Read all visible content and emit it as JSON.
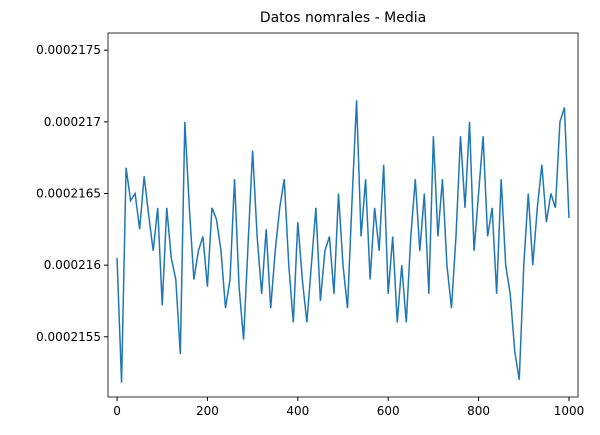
{
  "chart_data": {
    "type": "line",
    "title": "Datos nomrales - Media",
    "x": [
      0,
      10,
      20,
      30,
      40,
      50,
      60,
      70,
      80,
      90,
      100,
      110,
      120,
      130,
      140,
      150,
      160,
      170,
      180,
      190,
      200,
      210,
      220,
      230,
      240,
      250,
      260,
      270,
      280,
      290,
      300,
      310,
      320,
      330,
      340,
      350,
      360,
      370,
      380,
      390,
      400,
      410,
      420,
      430,
      440,
      450,
      460,
      470,
      480,
      490,
      500,
      510,
      520,
      530,
      540,
      550,
      560,
      570,
      580,
      590,
      600,
      610,
      620,
      630,
      640,
      650,
      660,
      670,
      680,
      690,
      700,
      710,
      720,
      730,
      740,
      750,
      760,
      770,
      780,
      790,
      800,
      810,
      820,
      830,
      840,
      850,
      860,
      870,
      880,
      890,
      900,
      910,
      920,
      930,
      940,
      950,
      960,
      970,
      980,
      990,
      1000
    ],
    "series": [
      {
        "color": "#1f77b4",
        "values": [
          0.00021605,
          0.00021518,
          0.00021668,
          0.00021645,
          0.0002165,
          0.00021625,
          0.00021662,
          0.00021635,
          0.0002161,
          0.0002164,
          0.00021572,
          0.0002164,
          0.00021605,
          0.0002159,
          0.00021538,
          0.000217,
          0.0002164,
          0.0002159,
          0.0002161,
          0.0002162,
          0.00021585,
          0.0002164,
          0.00021632,
          0.0002161,
          0.0002157,
          0.0002159,
          0.0002166,
          0.00021585,
          0.00021548,
          0.00021615,
          0.0002168,
          0.0002162,
          0.0002158,
          0.00021625,
          0.0002157,
          0.0002161,
          0.0002164,
          0.0002166,
          0.000216,
          0.0002156,
          0.0002163,
          0.0002159,
          0.0002156,
          0.000216,
          0.0002164,
          0.00021575,
          0.0002161,
          0.0002162,
          0.0002158,
          0.0002165,
          0.000216,
          0.0002157,
          0.00021645,
          0.00021715,
          0.0002162,
          0.0002166,
          0.0002159,
          0.0002164,
          0.0002161,
          0.0002167,
          0.0002158,
          0.0002162,
          0.0002156,
          0.000216,
          0.0002156,
          0.0002162,
          0.0002166,
          0.0002161,
          0.0002165,
          0.0002158,
          0.0002169,
          0.0002162,
          0.0002166,
          0.000216,
          0.0002157,
          0.0002162,
          0.0002169,
          0.0002164,
          0.000217,
          0.0002161,
          0.0002165,
          0.0002169,
          0.0002162,
          0.0002164,
          0.0002158,
          0.0002166,
          0.000216,
          0.0002158,
          0.0002154,
          0.0002152,
          0.000216,
          0.0002165,
          0.000216,
          0.0002164,
          0.0002167,
          0.0002163,
          0.0002165,
          0.0002164,
          0.000217,
          0.0002171,
          0.00021633
        ]
      }
    ],
    "xlim": [
      -20,
      1020
    ],
    "xticks": [
      0,
      200,
      400,
      600,
      800,
      1000
    ],
    "ylim": [
      0.00021508,
      0.00021762
    ],
    "yticks": [
      0.0002155,
      0.000216,
      0.0002165,
      0.000217,
      0.0002175
    ]
  }
}
